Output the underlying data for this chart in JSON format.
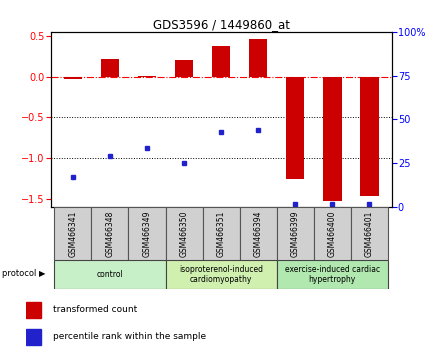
{
  "title": "GDS3596 / 1449860_at",
  "samples": [
    "GSM466341",
    "GSM466348",
    "GSM466349",
    "GSM466350",
    "GSM466351",
    "GSM466394",
    "GSM466399",
    "GSM466400",
    "GSM466401"
  ],
  "red_bars": [
    -0.03,
    0.22,
    0.01,
    0.2,
    0.38,
    0.46,
    -1.25,
    -1.52,
    -1.47
  ],
  "blue_pct": [
    17,
    29,
    34,
    25,
    43,
    44,
    2,
    2,
    2
  ],
  "ylim_left": [
    -1.6,
    0.55
  ],
  "ylim_right": [
    0,
    100
  ],
  "yticks_left": [
    -1.5,
    -1.0,
    -0.5,
    0.0,
    0.5
  ],
  "yticks_right": [
    0,
    25,
    50,
    75,
    100
  ],
  "red_color": "#cc0000",
  "blue_color": "#2222cc",
  "bar_width": 0.5,
  "proto_ranges": [
    [
      0,
      2,
      "control",
      "#c8f0c8"
    ],
    [
      3,
      5,
      "isoproterenol-induced\ncardiomyopathy",
      "#d0f0b0"
    ],
    [
      6,
      8,
      "exercise-induced cardiac\nhypertrophy",
      "#b0e8b0"
    ]
  ]
}
